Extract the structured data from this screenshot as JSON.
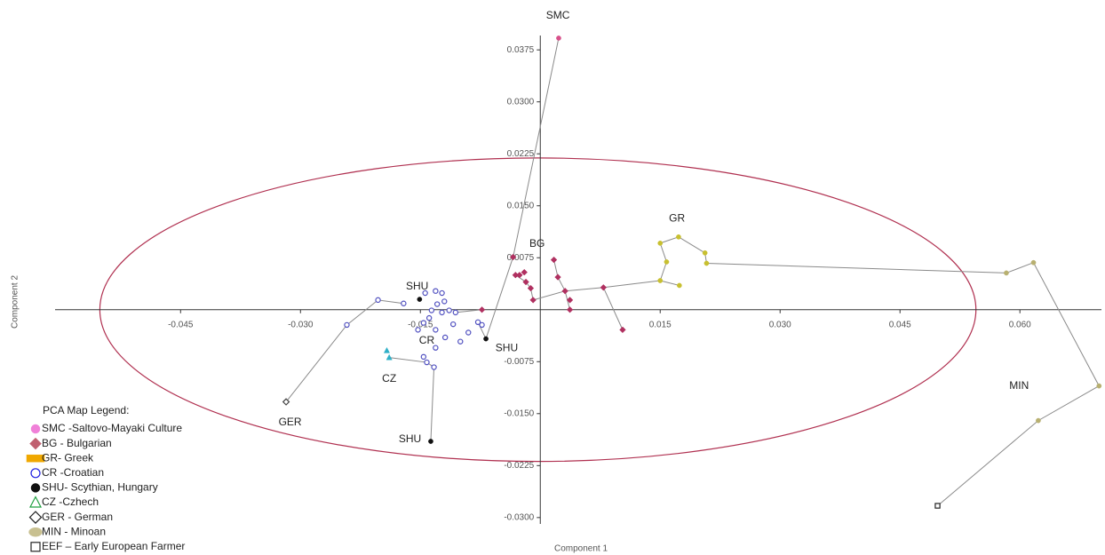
{
  "chart_data": {
    "type": "scatter",
    "xlabel": "Component 1",
    "ylabel": "Component 2",
    "xlim": [
      -0.0607,
      0.0702
    ],
    "ylim": [
      -0.0322,
      0.0447
    ],
    "xticks": [
      -0.045,
      {
        "value": -0.03,
        "label": "-0.030"
      },
      -0.015,
      0.015,
      {
        "value": 0.03,
        "label": "0.030"
      },
      0.045,
      {
        "value": 0.06,
        "label": "0.060"
      }
    ],
    "yticks": [
      {
        "value": 0.0375,
        "label": "0.0375"
      },
      {
        "value": 0.03,
        "label": "0.0300"
      },
      {
        "value": 0.0225,
        "label": "0.0225"
      },
      {
        "value": 0.015,
        "label": "0.0150"
      },
      {
        "value": 0.0075,
        "label": "0.0075"
      },
      {
        "value": -0.0075,
        "label": "-0.0075"
      },
      {
        "value": -0.015,
        "label": "-0.0150"
      },
      {
        "value": -0.0225,
        "label": "-0.0225"
      },
      {
        "value": -0.03,
        "label": "-0.0300"
      }
    ],
    "legend_title": "PCA Map Legend:",
    "legend_position": "lower left",
    "link_color": "#8a8a8a",
    "ellipse": {
      "cx": -0.0003,
      "cy": 0,
      "rx": 0.0548,
      "ry": 0.0219,
      "color": "#b03050"
    },
    "series": [
      {
        "name": "SMC -Saltovo-Mayaki Culture",
        "color": "#d8508a",
        "marker": "dot",
        "legend_color": "#f080d8",
        "legend_marker": "dot",
        "x": [
          0.0023
        ],
        "y": [
          0.0392
        ]
      },
      {
        "name": "BG - Bulgarian",
        "color": "#b03060",
        "marker": "diamond",
        "legend_color": "#c06070",
        "legend_marker": "diamond",
        "x": [
          -0.0034,
          -0.0031,
          -0.0026,
          -0.002,
          -0.0018,
          -0.0012,
          -0.0009,
          0.0017,
          0.0022,
          0.0031,
          0.0037,
          0.0037,
          -0.0073,
          0.0103,
          0.0079
        ],
        "y": [
          0.0076,
          0.005,
          0.005,
          0.0054,
          0.004,
          0.0031,
          0.0014,
          0.0072,
          0.0047,
          0.0027,
          0.0014,
          0,
          0,
          -0.0029,
          0.0032
        ]
      },
      {
        "name": "GR- Greek",
        "color": "#c8c030",
        "marker": "dot",
        "legend_color": "#f0a800",
        "legend_marker": "rect",
        "x": [
          0.015,
          0.0174,
          0.0158,
          0.015,
          0.0173,
          0.0206,
          0.0208
        ],
        "y": [
          0.0042,
          0.0035,
          0.0069,
          0.0096,
          0.0105,
          0.0082,
          0.0067
        ]
      },
      {
        "name": "CR -Croatian",
        "color": "#5050c0",
        "marker": "circle-open",
        "legend_color": "#2020e0",
        "legend_marker": "circle-open",
        "x": [
          -0.0242,
          -0.0203,
          -0.0171,
          -0.0144,
          -0.0131,
          -0.0123,
          -0.012,
          -0.0123,
          -0.0129,
          -0.0136,
          -0.0139,
          -0.0146,
          -0.0153,
          -0.0131,
          -0.0119,
          -0.0106,
          -0.0114,
          -0.0109,
          -0.01,
          -0.009,
          -0.0078,
          -0.0073,
          -0.0131,
          -0.0142,
          -0.0133,
          -0.0146
        ],
        "y": [
          -0.0022,
          0.0014,
          0.0009,
          0.0024,
          0.0027,
          0.0024,
          0.0012,
          -0.0004,
          0.0008,
          -0.0001,
          -0.0012,
          -0.0019,
          -0.0029,
          -0.0029,
          -0.004,
          -0.0004,
          -0.0001,
          -0.0021,
          -0.0046,
          -0.0033,
          -0.0018,
          -0.0022,
          -0.0055,
          -0.0076,
          -0.0083,
          -0.0068
        ]
      },
      {
        "name": "SHU- Scythian, Hungary",
        "color": "#111111",
        "marker": "dot",
        "legend_color": "#111111",
        "legend_marker": "dot",
        "x": [
          -0.0151,
          -0.0068,
          -0.0137
        ],
        "y": [
          0.0015,
          -0.0042,
          -0.019
        ]
      },
      {
        "name": "CZ -Czhech",
        "color": "#30b0c8",
        "marker": "triangle",
        "legend_color": "#20a040",
        "legend_marker": "triangle-open",
        "x": [
          -0.0192,
          -0.0189
        ],
        "y": [
          -0.0059,
          -0.0069
        ]
      },
      {
        "name": "GER - German",
        "color": "#444444",
        "marker": "diamond-open",
        "legend_color": "#222222",
        "legend_marker": "diamond-open",
        "x": [
          -0.0318
        ],
        "y": [
          -0.0133
        ]
      },
      {
        "name": "MIN - Minoan",
        "color": "#b8b070",
        "marker": "dot",
        "legend_color": "#c8c090",
        "legend_marker": "ellipse",
        "x": [
          0.0583,
          0.0617,
          0.0699,
          0.0623
        ],
        "y": [
          0.0053,
          0.0068,
          -0.011,
          -0.016
        ]
      },
      {
        "name": "EEF – Early European Farmer",
        "color": "#222222",
        "marker": "square-open",
        "legend_color": "#222222",
        "legend_marker": "square-open",
        "x": [
          0.0497
        ],
        "y": [
          -0.0283
        ]
      }
    ],
    "links": [
      {
        "x": [
          -0.0318,
          -0.0242,
          -0.0203,
          -0.0171
        ],
        "y": [
          -0.0133,
          -0.0022,
          0.0014,
          0.0009
        ]
      },
      {
        "x": [
          -0.0189,
          -0.0142,
          -0.0133,
          -0.0137
        ],
        "y": [
          -0.0069,
          -0.0076,
          -0.0083,
          -0.019
        ]
      },
      {
        "x": [
          -0.0078,
          -0.0068,
          -0.0034,
          0.0023
        ],
        "y": [
          -0.0018,
          -0.0042,
          0.0076,
          0.0392
        ]
      },
      {
        "x": [
          -0.0031,
          -0.0018,
          -0.0012,
          -0.0009,
          0.0031,
          0.0079,
          0.015
        ],
        "y": [
          0.005,
          0.004,
          0.0031,
          0.0014,
          0.0027,
          0.0032,
          0.0042
        ]
      },
      {
        "x": [
          0.0017,
          0.0022,
          0.0031,
          0.0037
        ],
        "y": [
          0.0072,
          0.0047,
          0.0027,
          0
        ]
      },
      {
        "x": [
          0.0079,
          0.0103
        ],
        "y": [
          0.0032,
          -0.0029
        ]
      },
      {
        "x": [
          0.0174,
          0.015,
          0.0158,
          0.015,
          0.0173,
          0.0206,
          0.0208,
          0.0583,
          0.0617,
          0.0699,
          0.0623,
          0.0497
        ],
        "y": [
          0.0035,
          0.0042,
          0.0069,
          0.0096,
          0.0105,
          0.0082,
          0.0067,
          0.0053,
          0.0068,
          -0.011,
          -0.016,
          -0.0283
        ]
      },
      {
        "x": [
          -0.0106,
          -0.0073
        ],
        "y": [
          -0.0004,
          0
        ]
      }
    ],
    "annotations": [
      {
        "text": "SMC",
        "x": 0.0022,
        "y": 0.0424
      },
      {
        "text": "BG",
        "x": -0.0004,
        "y": 0.0095
      },
      {
        "text": "GR",
        "x": 0.0171,
        "y": 0.0131
      },
      {
        "text": "SHU",
        "x": -0.0154,
        "y": 0.0033
      },
      {
        "text": "CR",
        "x": -0.0142,
        "y": -0.0045
      },
      {
        "text": "SHU",
        "x": -0.0042,
        "y": -0.0056
      },
      {
        "text": "CZ",
        "x": -0.0189,
        "y": -0.01
      },
      {
        "text": "GER",
        "x": -0.0313,
        "y": -0.0163
      },
      {
        "text": "SHU",
        "x": -0.0163,
        "y": -0.0187
      },
      {
        "text": "MIN",
        "x": 0.0599,
        "y": -0.011
      }
    ]
  }
}
